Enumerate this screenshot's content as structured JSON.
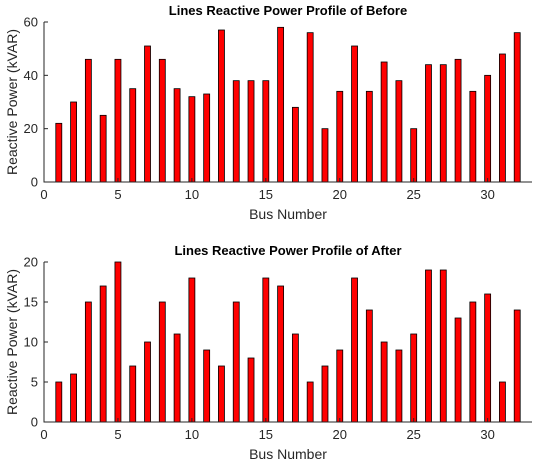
{
  "chart_data": [
    {
      "type": "bar",
      "title": "Lines Reactive Power Profile of Before",
      "xlabel": "Bus Number",
      "ylabel": "Reactive Power (kVAR)",
      "x": [
        1,
        2,
        3,
        4,
        5,
        6,
        7,
        8,
        9,
        10,
        11,
        12,
        13,
        14,
        15,
        16,
        17,
        18,
        19,
        20,
        21,
        22,
        23,
        24,
        25,
        26,
        27,
        28,
        29,
        30,
        31,
        32
      ],
      "values": [
        22,
        30,
        46,
        25,
        46,
        35,
        51,
        46,
        35,
        32,
        33,
        57,
        38,
        38,
        38,
        58,
        28,
        56,
        20,
        34,
        51,
        34,
        45,
        38,
        20,
        44,
        44,
        46,
        34,
        40,
        48,
        56
      ],
      "xlim": [
        0,
        33
      ],
      "ylim": [
        0,
        60
      ],
      "xticks": [
        0,
        5,
        10,
        15,
        20,
        25,
        30
      ],
      "yticks": [
        0,
        20,
        40,
        60
      ],
      "bar_color": "#ff0000",
      "grid": false
    },
    {
      "type": "bar",
      "title": "Lines Reactive Power Profile of After",
      "xlabel": "Bus Number",
      "ylabel": "Reactive Power (kVAR)",
      "x": [
        1,
        2,
        3,
        4,
        5,
        6,
        7,
        8,
        9,
        10,
        11,
        12,
        13,
        14,
        15,
        16,
        17,
        18,
        19,
        20,
        21,
        22,
        23,
        24,
        25,
        26,
        27,
        28,
        29,
        30,
        31,
        32
      ],
      "values": [
        5,
        6,
        15,
        17,
        20,
        7,
        10,
        15,
        11,
        18,
        9,
        7,
        15,
        8,
        18,
        17,
        11,
        5,
        7,
        9,
        18,
        14,
        10,
        9,
        11,
        19,
        19,
        13,
        15,
        16,
        5,
        14
      ],
      "xlim": [
        0,
        33
      ],
      "ylim": [
        0,
        20
      ],
      "xticks": [
        0,
        5,
        10,
        15,
        20,
        25,
        30
      ],
      "yticks": [
        0,
        5,
        10,
        15,
        20
      ],
      "bar_color": "#ff0000",
      "grid": false
    }
  ]
}
